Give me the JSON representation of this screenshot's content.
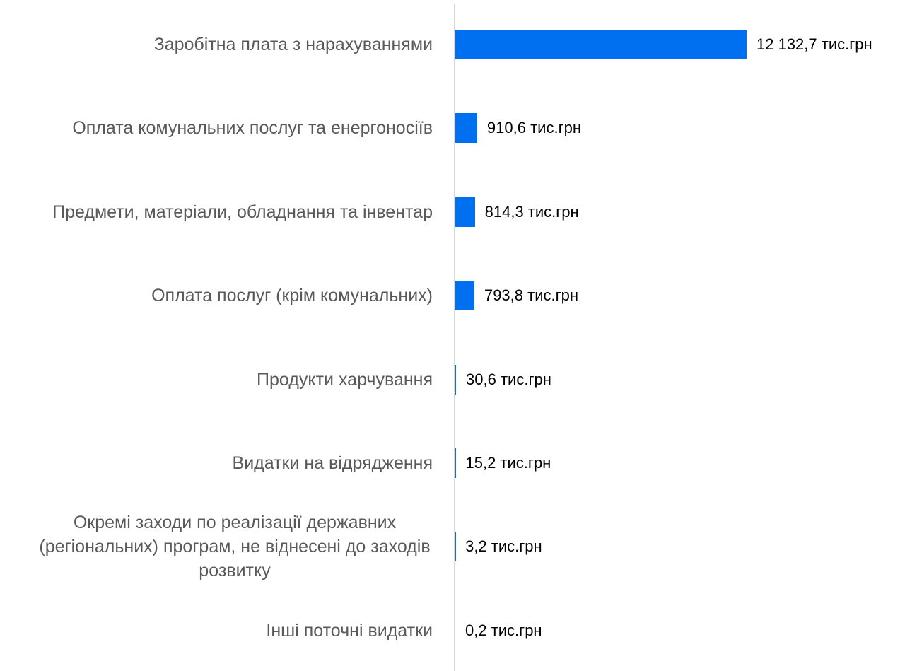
{
  "chart_data": {
    "type": "bar",
    "orientation": "horizontal",
    "color": "#0070f0",
    "categories": [
      "Заробітна плата з нарахуваннями",
      "Оплата комунальних послуг та енергоносіїв",
      "Предмети, матеріали, обладнання та інвентар",
      "Оплата послуг (крім комунальних)",
      "Продукти харчування",
      "Видатки на відрядження",
      "Окремі заходи по реалізації державних (регіональних) програм, не віднесені до заходів розвитку",
      "Інші поточні видатки"
    ],
    "values": [
      12132.7,
      910.6,
      814.3,
      793.8,
      30.6,
      15.2,
      3.2,
      0.2
    ],
    "value_labels": [
      "12 132,7 тис.грн",
      "910,6 тис.грн",
      "814,3 тис.грн",
      "793,8 тис.грн",
      "30,6 тис.грн",
      "15,2 тис.грн",
      "3,2 тис.грн",
      "0,2 тис.грн"
    ]
  }
}
